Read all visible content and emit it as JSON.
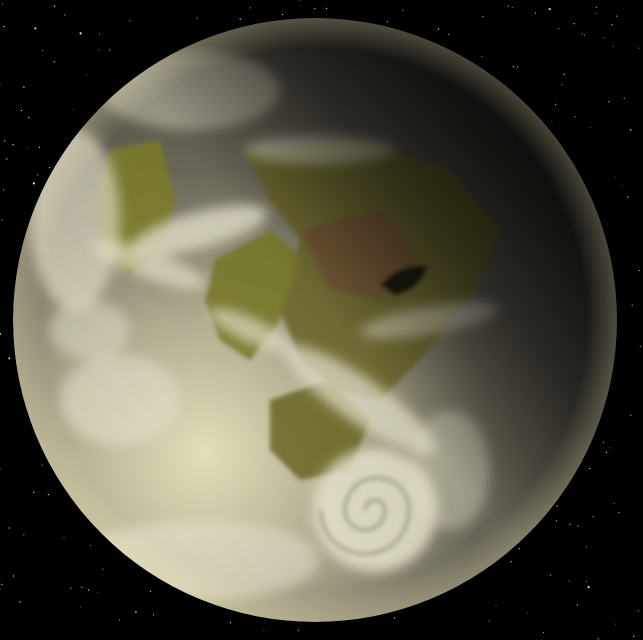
{
  "scene": {
    "subject": "planet-icon",
    "colors": {
      "space": "#000000",
      "star": "#ffffff",
      "ocean": "#6e6a5a",
      "ocean_light": "#c9c7a4",
      "land": "#7c7f2e",
      "land_dark": "#5a5320",
      "land_red": "#7a4a3a",
      "cloud": "#e6e2cc",
      "terminator": "#000000"
    }
  }
}
